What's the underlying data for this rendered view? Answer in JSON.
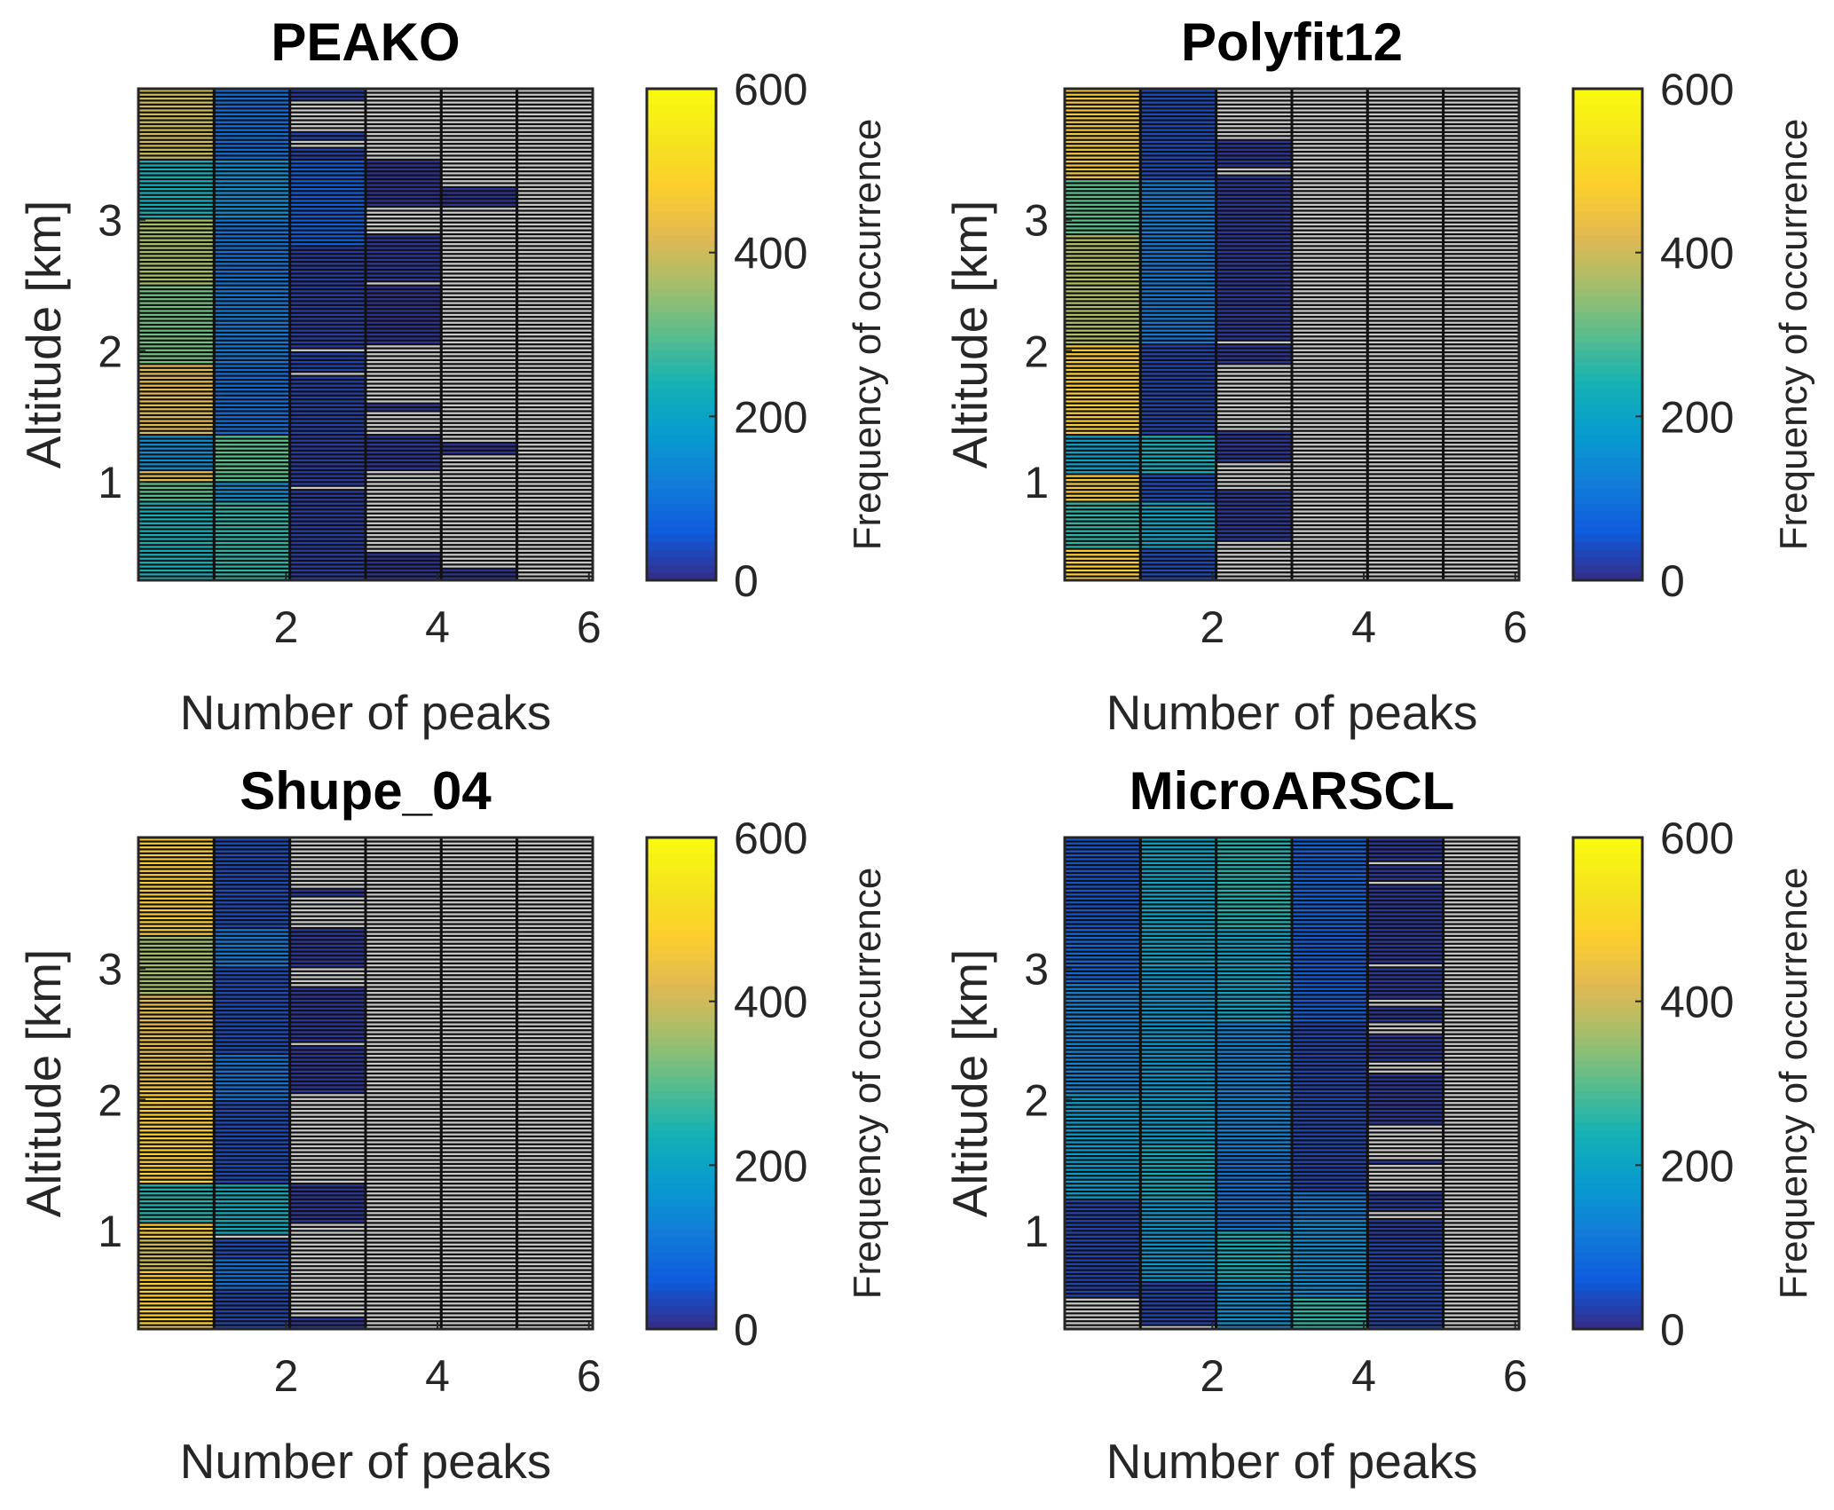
{
  "chart_data": {
    "type": "heatmap",
    "colormap": "parula",
    "nan_color": "#c8c8c8",
    "altitude_bin_km": 0.03,
    "shared": {
      "xlabel": "Number of peaks",
      "ylabel": "Altitude [km]",
      "colorbar_label": "Frequency of occurrence",
      "x_ticks": [
        2,
        4,
        6
      ],
      "y_ticks": [
        1,
        2,
        3
      ],
      "colorbar_ticks": [
        0,
        200,
        400,
        600
      ],
      "xlim": [
        0.05,
        6.05
      ],
      "ylim": [
        0.25,
        4.0
      ],
      "clim": [
        0,
        600
      ],
      "columns": [
        1,
        2,
        3,
        4,
        5,
        6
      ]
    },
    "panels": [
      {
        "title": "PEAKO",
        "columns": [
          [
            [
              0.25,
              0.85,
              230
            ],
            [
              0.85,
              1.0,
              300
            ],
            [
              1.0,
              1.1,
              420
            ],
            [
              1.1,
              1.35,
              150
            ],
            [
              1.35,
              1.9,
              420
            ],
            [
              1.9,
              2.5,
              320
            ],
            [
              2.5,
              3.0,
              360
            ],
            [
              3.0,
              3.45,
              230
            ],
            [
              3.45,
              4.0,
              400
            ]
          ],
          [
            [
              0.25,
              0.85,
              260
            ],
            [
              0.85,
              1.0,
              150
            ],
            [
              1.0,
              1.35,
              300
            ],
            [
              1.35,
              1.9,
              90
            ],
            [
              1.9,
              2.5,
              110
            ],
            [
              2.5,
              3.0,
              100
            ],
            [
              3.0,
              3.45,
              150
            ],
            [
              3.45,
              4.0,
              90
            ]
          ],
          [
            [
              0.25,
              0.95,
              20
            ],
            [
              0.95,
              0.98,
              null
            ],
            [
              0.98,
              1.35,
              20
            ],
            [
              1.35,
              1.8,
              25
            ],
            [
              1.8,
              1.83,
              null
            ],
            [
              1.83,
              2.0,
              30
            ],
            [
              2.0,
              2.03,
              null
            ],
            [
              2.03,
              2.8,
              20
            ],
            [
              2.8,
              3.45,
              60
            ],
            [
              3.45,
              3.55,
              25
            ],
            [
              3.55,
              3.6,
              null
            ],
            [
              3.6,
              3.68,
              30
            ],
            [
              3.68,
              3.9,
              null
            ],
            [
              3.9,
              4.0,
              20
            ]
          ],
          [
            [
              0.25,
              0.45,
              10
            ],
            [
              0.45,
              1.1,
              null
            ],
            [
              1.1,
              1.35,
              15
            ],
            [
              1.35,
              1.55,
              null
            ],
            [
              1.55,
              1.6,
              10
            ],
            [
              1.6,
              2.05,
              null
            ],
            [
              2.05,
              2.5,
              10
            ],
            [
              2.5,
              2.53,
              null
            ],
            [
              2.53,
              2.9,
              15
            ],
            [
              2.9,
              3.1,
              null
            ],
            [
              3.1,
              3.45,
              10
            ],
            [
              3.45,
              4.0,
              null
            ]
          ],
          [
            [
              0.25,
              0.35,
              10
            ],
            [
              0.35,
              1.2,
              null
            ],
            [
              1.2,
              1.3,
              10
            ],
            [
              1.3,
              3.1,
              null
            ],
            [
              3.1,
              3.25,
              10
            ],
            [
              3.25,
              4.0,
              null
            ]
          ],
          [
            [
              0.25,
              4.0,
              null
            ]
          ]
        ]
      },
      {
        "title": "Polyfit12",
        "columns": [
          [
            [
              0.25,
              0.5,
              480
            ],
            [
              0.5,
              0.85,
              260
            ],
            [
              0.85,
              1.05,
              460
            ],
            [
              1.05,
              1.35,
              190
            ],
            [
              1.35,
              2.05,
              470
            ],
            [
              2.05,
              2.9,
              370
            ],
            [
              2.9,
              3.3,
              300
            ],
            [
              3.3,
              4.0,
              450
            ]
          ],
          [
            [
              0.25,
              0.5,
              40
            ],
            [
              0.5,
              0.85,
              200
            ],
            [
              0.85,
              1.05,
              40
            ],
            [
              1.05,
              1.35,
              230
            ],
            [
              1.35,
              2.05,
              30
            ],
            [
              2.05,
              2.85,
              110
            ],
            [
              2.85,
              3.3,
              120
            ],
            [
              3.3,
              4.0,
              40
            ]
          ],
          [
            [
              0.25,
              0.55,
              null
            ],
            [
              0.55,
              0.95,
              15
            ],
            [
              0.95,
              1.15,
              null
            ],
            [
              1.15,
              1.4,
              15
            ],
            [
              1.4,
              1.9,
              null
            ],
            [
              1.9,
              2.05,
              15
            ],
            [
              2.05,
              2.08,
              null
            ],
            [
              2.08,
              3.35,
              15
            ],
            [
              3.35,
              3.4,
              null
            ],
            [
              3.4,
              3.6,
              15
            ],
            [
              3.6,
              4.0,
              null
            ]
          ],
          [
            [
              0.25,
              4.0,
              null
            ]
          ],
          [
            [
              0.25,
              4.0,
              null
            ]
          ],
          [
            [
              0.25,
              4.0,
              null
            ]
          ]
        ]
      },
      {
        "title": "Shupe_04",
        "columns": [
          [
            [
              0.25,
              0.7,
              480
            ],
            [
              0.7,
              0.95,
              400
            ],
            [
              0.95,
              1.05,
              470
            ],
            [
              1.05,
              1.35,
              250
            ],
            [
              1.35,
              2.1,
              480
            ],
            [
              2.1,
              2.8,
              430
            ],
            [
              2.8,
              3.25,
              360
            ],
            [
              3.25,
              4.0,
              470
            ]
          ],
          [
            [
              0.25,
              0.55,
              30
            ],
            [
              0.55,
              0.8,
              100
            ],
            [
              0.8,
              0.95,
              40
            ],
            [
              0.95,
              0.98,
              null
            ],
            [
              0.98,
              1.35,
              220
            ],
            [
              1.35,
              2.0,
              40
            ],
            [
              2.0,
              2.35,
              100
            ],
            [
              2.35,
              3.0,
              40
            ],
            [
              3.0,
              3.3,
              110
            ],
            [
              3.3,
              4.0,
              40
            ]
          ],
          [
            [
              0.25,
              0.35,
              15
            ],
            [
              0.35,
              1.05,
              null
            ],
            [
              1.05,
              1.35,
              15
            ],
            [
              1.35,
              2.05,
              null
            ],
            [
              2.05,
              2.4,
              15
            ],
            [
              2.4,
              2.45,
              null
            ],
            [
              2.45,
              2.85,
              15
            ],
            [
              2.85,
              3.0,
              null
            ],
            [
              3.0,
              3.3,
              15
            ],
            [
              3.3,
              3.55,
              null
            ],
            [
              3.55,
              3.6,
              15
            ],
            [
              3.6,
              4.0,
              null
            ]
          ],
          [
            [
              0.25,
              4.0,
              null
            ]
          ],
          [
            [
              0.25,
              4.0,
              null
            ]
          ],
          [
            [
              0.25,
              4.0,
              null
            ]
          ]
        ]
      },
      {
        "title": "MicroARSCL",
        "columns": [
          [
            [
              0.25,
              0.48,
              null
            ],
            [
              0.48,
              1.25,
              30
            ],
            [
              1.25,
              2.05,
              180
            ],
            [
              2.05,
              2.9,
              130
            ],
            [
              2.9,
              3.3,
              80
            ],
            [
              3.3,
              4.0,
              50
            ]
          ],
          [
            [
              0.25,
              0.28,
              null
            ],
            [
              0.28,
              0.6,
              30
            ],
            [
              0.6,
              1.25,
              170
            ],
            [
              1.25,
              1.65,
              220
            ],
            [
              1.65,
              2.05,
              180
            ],
            [
              2.05,
              3.0,
              170
            ],
            [
              3.0,
              4.0,
              200
            ]
          ],
          [
            [
              0.25,
              0.6,
              150
            ],
            [
              0.6,
              1.0,
              230
            ],
            [
              1.0,
              1.6,
              100
            ],
            [
              1.6,
              2.6,
              130
            ],
            [
              2.6,
              3.3,
              200
            ],
            [
              3.3,
              4.0,
              250
            ]
          ],
          [
            [
              0.25,
              0.5,
              260
            ],
            [
              0.5,
              1.1,
              150
            ],
            [
              1.1,
              1.3,
              110
            ],
            [
              1.3,
              2.6,
              30
            ],
            [
              2.6,
              3.3,
              60
            ],
            [
              3.3,
              4.0,
              70
            ]
          ],
          [
            [
              0.25,
              0.9,
              30
            ],
            [
              0.9,
              1.1,
              20
            ],
            [
              1.1,
              1.15,
              null
            ],
            [
              1.15,
              1.3,
              20
            ],
            [
              1.3,
              1.5,
              null
            ],
            [
              1.5,
              1.55,
              15
            ],
            [
              1.55,
              1.8,
              null
            ],
            [
              1.8,
              2.2,
              15
            ],
            [
              2.2,
              2.28,
              null
            ],
            [
              2.28,
              2.5,
              15
            ],
            [
              2.5,
              2.6,
              null
            ],
            [
              2.6,
              2.7,
              15
            ],
            [
              2.7,
              2.78,
              null
            ],
            [
              2.78,
              3.0,
              15
            ],
            [
              3.0,
              3.03,
              null
            ],
            [
              3.03,
              3.65,
              15
            ],
            [
              3.65,
              3.68,
              null
            ],
            [
              3.68,
              3.8,
              15
            ],
            [
              3.8,
              3.83,
              null
            ],
            [
              3.83,
              4.0,
              15
            ]
          ],
          [
            [
              0.25,
              4.0,
              null
            ]
          ]
        ]
      }
    ]
  }
}
